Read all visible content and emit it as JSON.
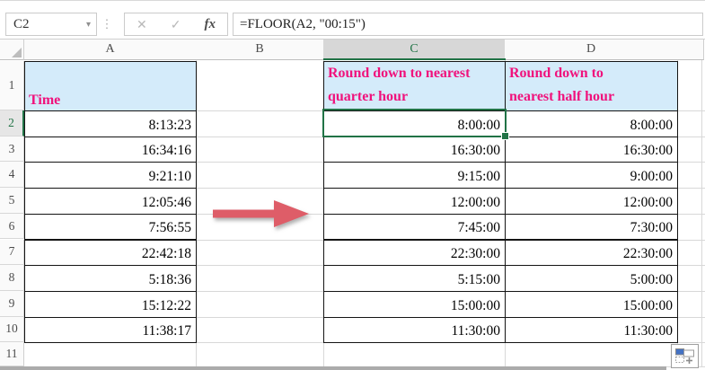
{
  "formula_bar": {
    "cell_reference": "C2",
    "dropdown_icon": "▾",
    "separator_dots": "⋮",
    "cancel_label": "✕",
    "enter_label": "✓",
    "function_label": "fx",
    "formula": "=FLOOR(A2, \"00:15\")"
  },
  "grid": {
    "column_headers": [
      {
        "letter": "A",
        "selected": false
      },
      {
        "letter": "B",
        "selected": false
      },
      {
        "letter": "C",
        "selected": true
      },
      {
        "letter": "D",
        "selected": false
      },
      {
        "letter": "",
        "selected": false
      }
    ],
    "row_headers": [
      {
        "number": "1",
        "selected": false
      },
      {
        "number": "2",
        "selected": true
      },
      {
        "number": "3",
        "selected": false
      },
      {
        "number": "4",
        "selected": false
      },
      {
        "number": "5",
        "selected": false
      },
      {
        "number": "6",
        "selected": false
      },
      {
        "number": "7",
        "selected": false
      },
      {
        "number": "8",
        "selected": false
      },
      {
        "number": "9",
        "selected": false
      },
      {
        "number": "10",
        "selected": false
      },
      {
        "number": "11",
        "selected": false
      }
    ]
  },
  "cells": {
    "A1": "Time",
    "C1_lines": [
      "Round down to nearest",
      "quarter hour"
    ],
    "D1_lines": [
      "Round down to",
      "nearest half hour"
    ],
    "data_rows": [
      {
        "row": "2",
        "A": "8:13:23",
        "C": "8:00:00",
        "D": "8:00:00"
      },
      {
        "row": "3",
        "A": "16:34:16",
        "C": "16:30:00",
        "D": "16:30:00"
      },
      {
        "row": "4",
        "A": "9:21:10",
        "C": "9:15:00",
        "D": "9:00:00"
      },
      {
        "row": "5",
        "A": "12:05:46",
        "C": "12:00:00",
        "D": "12:00:00"
      },
      {
        "row": "6",
        "A": "7:56:55",
        "C": "7:45:00",
        "D": "7:30:00"
      },
      {
        "row": "7",
        "A": "22:42:18",
        "C": "22:30:00",
        "D": "22:30:00"
      },
      {
        "row": "8",
        "A": "5:18:36",
        "C": "5:15:00",
        "D": "5:00:00"
      },
      {
        "row": "9",
        "A": "15:12:22",
        "C": "15:00:00",
        "D": "15:00:00"
      },
      {
        "row": "10",
        "A": "11:38:17",
        "C": "11:30:00",
        "D": "11:30:00"
      }
    ]
  },
  "selection": {
    "selected_cell": "C2"
  },
  "icons": {
    "red_arrow": "right-arrow",
    "autofill": "auto-fill-options"
  },
  "colors": {
    "selection_green": "#217346",
    "header_text_pink": "#F0127C",
    "header_fill_blue": "#D4EBFA",
    "arrow_red": "#DE5D68",
    "autofill_blue": "#4472C4",
    "cell_border_black": "#141414"
  }
}
